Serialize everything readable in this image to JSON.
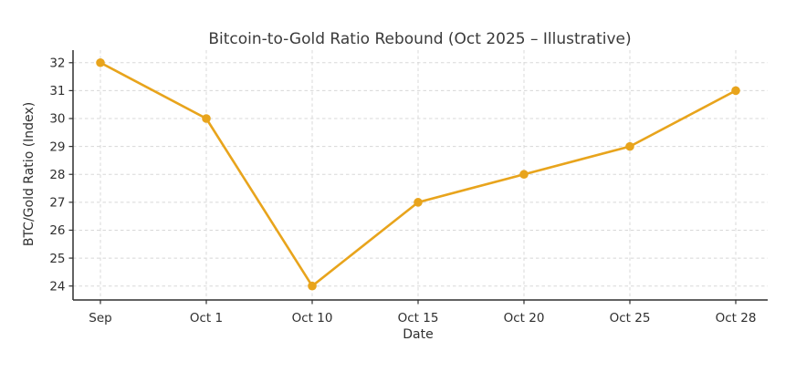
{
  "chart_data": {
    "type": "line",
    "title": "Bitcoin-to-Gold Ratio Rebound (Oct 2025 – Illustrative)",
    "xlabel": "Date",
    "ylabel": "BTC/Gold Ratio (Index)",
    "categories": [
      "Sep",
      "Oct 1",
      "Oct 10",
      "Oct 15",
      "Oct 20",
      "Oct 25",
      "Oct 28"
    ],
    "series": [
      {
        "name": "BTC/Gold Ratio",
        "values": [
          32,
          30,
          24,
          27,
          28,
          29,
          31
        ],
        "color": "#E8A41C",
        "marker": "circle"
      }
    ],
    "yticks": [
      24,
      25,
      26,
      27,
      28,
      29,
      30,
      31,
      32
    ],
    "ylim": [
      23.5,
      32.45
    ],
    "grid": true,
    "grid_style": "dashed",
    "legend": false,
    "background": "#ffffff"
  }
}
